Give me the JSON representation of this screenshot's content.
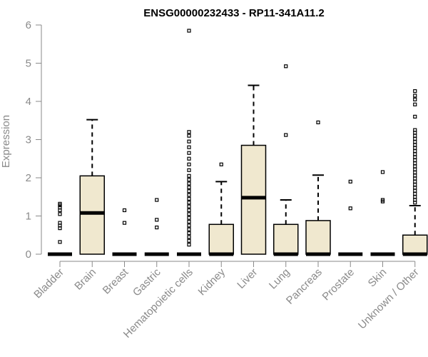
{
  "chart_data": {
    "type": "boxplot",
    "title": "ENSG00000232433 - RP11-341A11.2",
    "xlabel": "",
    "ylabel": "Expression",
    "ylim": [
      0,
      6
    ],
    "yticks": [
      0,
      1,
      2,
      3,
      4,
      5,
      6
    ],
    "categories": [
      "Bladder",
      "Brain",
      "Breast",
      "Gastric",
      "Hematopoietic cells",
      "Kidney",
      "Liver",
      "Lung",
      "Pancreas",
      "Prostate",
      "Skin",
      "Unknown / Other"
    ],
    "boxes": [
      {
        "category": "Bladder",
        "min": 0,
        "q1": 0,
        "median": 0,
        "q3": 0,
        "max": 0,
        "outliers": [
          0.32,
          0.68,
          0.75,
          0.82,
          1.05,
          1.15,
          1.22,
          1.28,
          1.32
        ]
      },
      {
        "category": "Brain",
        "min": 0,
        "q1": 0,
        "median": 1.08,
        "q3": 2.05,
        "max": 3.52,
        "outliers": []
      },
      {
        "category": "Breast",
        "min": 0,
        "q1": 0,
        "median": 0,
        "q3": 0,
        "max": 0,
        "outliers": [
          0.82,
          1.15
        ]
      },
      {
        "category": "Gastric",
        "min": 0,
        "q1": 0,
        "median": 0,
        "q3": 0,
        "max": 0,
        "outliers": [
          0.7,
          0.9,
          1.42
        ]
      },
      {
        "category": "Hematopoietic cells",
        "min": 0,
        "q1": 0,
        "median": 0,
        "q3": 0,
        "max": 0,
        "outliers": [
          0.25,
          0.35,
          0.45,
          0.55,
          0.65,
          0.75,
          0.85,
          0.95,
          1.05,
          1.15,
          1.25,
          1.35,
          1.45,
          1.55,
          1.65,
          1.75,
          1.85,
          1.95,
          2.05,
          2.2,
          2.35,
          2.5,
          2.65,
          2.8,
          2.95,
          3.1,
          3.2,
          5.85
        ]
      },
      {
        "category": "Kidney",
        "min": 0,
        "q1": 0,
        "median": 0,
        "q3": 0.78,
        "max": 1.9,
        "outliers": [
          2.35
        ]
      },
      {
        "category": "Liver",
        "min": 0,
        "q1": 0,
        "median": 1.48,
        "q3": 2.85,
        "max": 4.42,
        "outliers": []
      },
      {
        "category": "Lung",
        "min": 0,
        "q1": 0,
        "median": 0,
        "q3": 0.78,
        "max": 1.42,
        "outliers": [
          3.12,
          4.92
        ]
      },
      {
        "category": "Pancreas",
        "min": 0,
        "q1": 0,
        "median": 0,
        "q3": 0.88,
        "max": 2.07,
        "outliers": [
          3.45
        ]
      },
      {
        "category": "Prostate",
        "min": 0,
        "q1": 0,
        "median": 0,
        "q3": 0,
        "max": 0,
        "outliers": [
          1.2,
          1.9
        ]
      },
      {
        "category": "Skin",
        "min": 0,
        "q1": 0,
        "median": 0,
        "q3": 0,
        "max": 0,
        "outliers": [
          1.38,
          1.42,
          2.15
        ]
      },
      {
        "category": "Unknown / Other",
        "min": 0,
        "q1": 0,
        "median": 0,
        "q3": 0.5,
        "max": 1.27,
        "outliers": [
          1.35,
          1.42,
          1.5,
          1.58,
          1.66,
          1.74,
          1.82,
          1.9,
          1.98,
          2.06,
          2.14,
          2.22,
          2.3,
          2.38,
          2.46,
          2.54,
          2.62,
          2.7,
          2.78,
          2.86,
          2.94,
          3.02,
          3.1,
          3.18,
          3.25,
          3.6,
          3.92,
          4.05,
          4.15,
          4.27
        ]
      }
    ],
    "box_fill": "#f0e8cf",
    "box_stroke": "#000000",
    "axis_color": "#8a8a8a",
    "grid": false,
    "legend": "none"
  }
}
